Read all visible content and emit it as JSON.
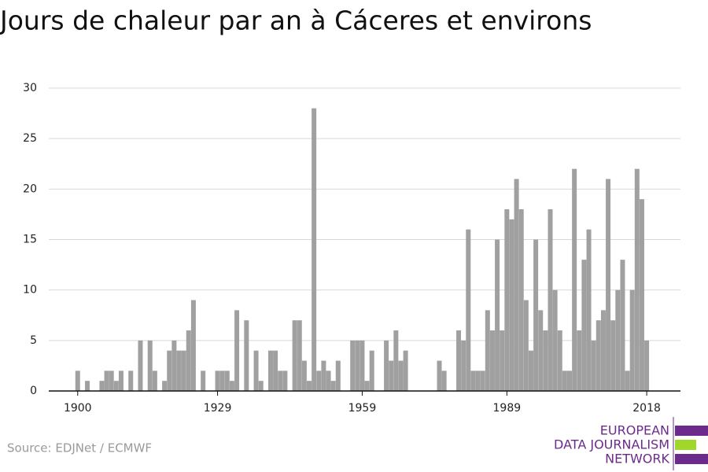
{
  "chart_data": {
    "type": "bar",
    "title": "Jours de chaleur par an à Cáceres et environs",
    "source": "Source: EDJNet / ECMWF",
    "logo": [
      "EUROPEAN",
      "DATA JOURNALISM",
      "NETWORK"
    ],
    "color": "#a0a0a0",
    "x": [
      1900,
      1901,
      1902,
      1903,
      1904,
      1905,
      1906,
      1907,
      1908,
      1909,
      1910,
      1911,
      1912,
      1913,
      1914,
      1915,
      1916,
      1917,
      1918,
      1919,
      1920,
      1921,
      1922,
      1923,
      1924,
      1925,
      1926,
      1927,
      1928,
      1929,
      1930,
      1931,
      1932,
      1933,
      1934,
      1935,
      1936,
      1937,
      1938,
      1939,
      1940,
      1941,
      1942,
      1943,
      1944,
      1945,
      1946,
      1947,
      1948,
      1949,
      1950,
      1951,
      1952,
      1953,
      1954,
      1955,
      1956,
      1957,
      1958,
      1959,
      1960,
      1961,
      1962,
      1963,
      1964,
      1965,
      1966,
      1967,
      1968,
      1969,
      1970,
      1971,
      1972,
      1973,
      1974,
      1975,
      1976,
      1977,
      1978,
      1979,
      1980,
      1981,
      1982,
      1983,
      1984,
      1985,
      1986,
      1987,
      1988,
      1989,
      1990,
      1991,
      1992,
      1993,
      1994,
      1995,
      1996,
      1997,
      1998,
      1999,
      2000,
      2001,
      2002,
      2003,
      2004,
      2005,
      2006,
      2007,
      2008,
      2009,
      2010,
      2011,
      2012,
      2013,
      2014,
      2015,
      2016,
      2017,
      2018
    ],
    "values": [
      2,
      0,
      1,
      0,
      0,
      1,
      2,
      2,
      1,
      2,
      0,
      2,
      0,
      5,
      0,
      5,
      2,
      0,
      1,
      4,
      5,
      4,
      4,
      6,
      9,
      0,
      2,
      0,
      0,
      2,
      2,
      2,
      1,
      8,
      0,
      7,
      0,
      4,
      1,
      0,
      4,
      4,
      2,
      2,
      0,
      7,
      7,
      3,
      1,
      28,
      2,
      3,
      2,
      1,
      3,
      0,
      0,
      5,
      5,
      5,
      1,
      4,
      0,
      0,
      5,
      3,
      6,
      3,
      4,
      0,
      0,
      0,
      0,
      0,
      0,
      3,
      2,
      0,
      0,
      6,
      5,
      16,
      2,
      2,
      2,
      8,
      6,
      15,
      6,
      18,
      17,
      21,
      18,
      9,
      4,
      15,
      8,
      6,
      18,
      10,
      6,
      2,
      2,
      22,
      6,
      13,
      16,
      5,
      7,
      8,
      21,
      7,
      10,
      13,
      2,
      10,
      22,
      19,
      5
    ],
    "xlim": [
      1894,
      2025
    ],
    "xticks": [
      1900,
      1929,
      1959,
      1989,
      2018
    ],
    "ylim": [
      0,
      30
    ],
    "yticks": [
      0,
      5,
      10,
      15,
      20,
      25,
      30
    ],
    "grid": true
  }
}
